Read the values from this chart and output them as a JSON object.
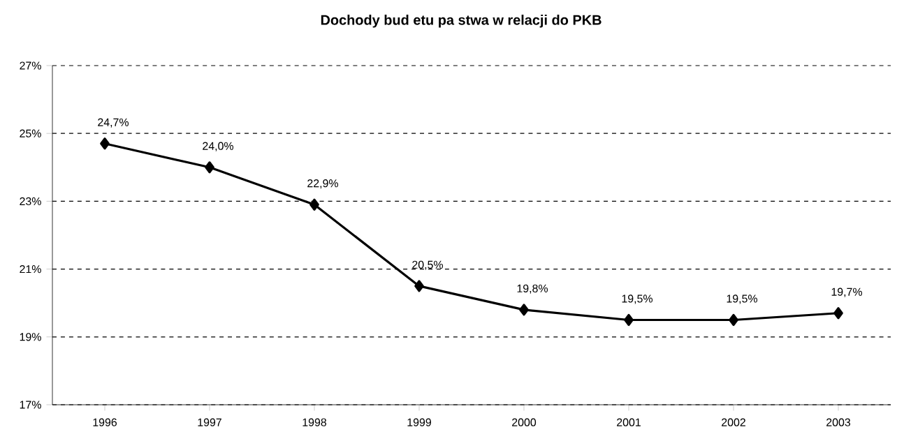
{
  "chart_data": {
    "type": "line",
    "title": "Dochody bud etu pa stwa w relacji do PKB",
    "categories": [
      "1996",
      "1997",
      "1998",
      "1999",
      "2000",
      "2001",
      "2002",
      "2003"
    ],
    "series": [
      {
        "color": "#000000",
        "values": [
          24.7,
          24.0,
          22.9,
          20.5,
          19.8,
          19.5,
          19.5,
          19.7
        ],
        "value_labels": [
          "24,7%",
          "24,0%",
          "22,9%",
          "20,5%",
          "19,8%",
          "19,5%",
          "19,5%",
          "19,7%"
        ]
      }
    ],
    "ylim": [
      17,
      27
    ],
    "yticks": [
      {
        "value": 17,
        "label": "17%"
      },
      {
        "value": 19,
        "label": "19%"
      },
      {
        "value": 21,
        "label": "21%"
      },
      {
        "value": 23,
        "label": "23%"
      },
      {
        "value": 25,
        "label": "25%"
      },
      {
        "value": 27,
        "label": "27%"
      }
    ],
    "grid": "y",
    "marker": "diamond",
    "line_style": "solid"
  }
}
